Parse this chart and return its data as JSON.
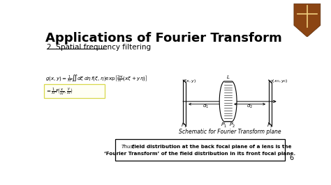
{
  "title": "Applications of Fourier Transform",
  "subtitle": "2. Spatial frequency filtering",
  "schematic_caption": "Schematic for Fourier Transform plane",
  "box_text_line1": "Thus,  field distribution at the back focal plane of a lens is the",
  "box_text_line2": "‘Fourier Transform’ of the field distribution in its front focal plane.",
  "page_number": "6",
  "logo_color": "#8B4513"
}
